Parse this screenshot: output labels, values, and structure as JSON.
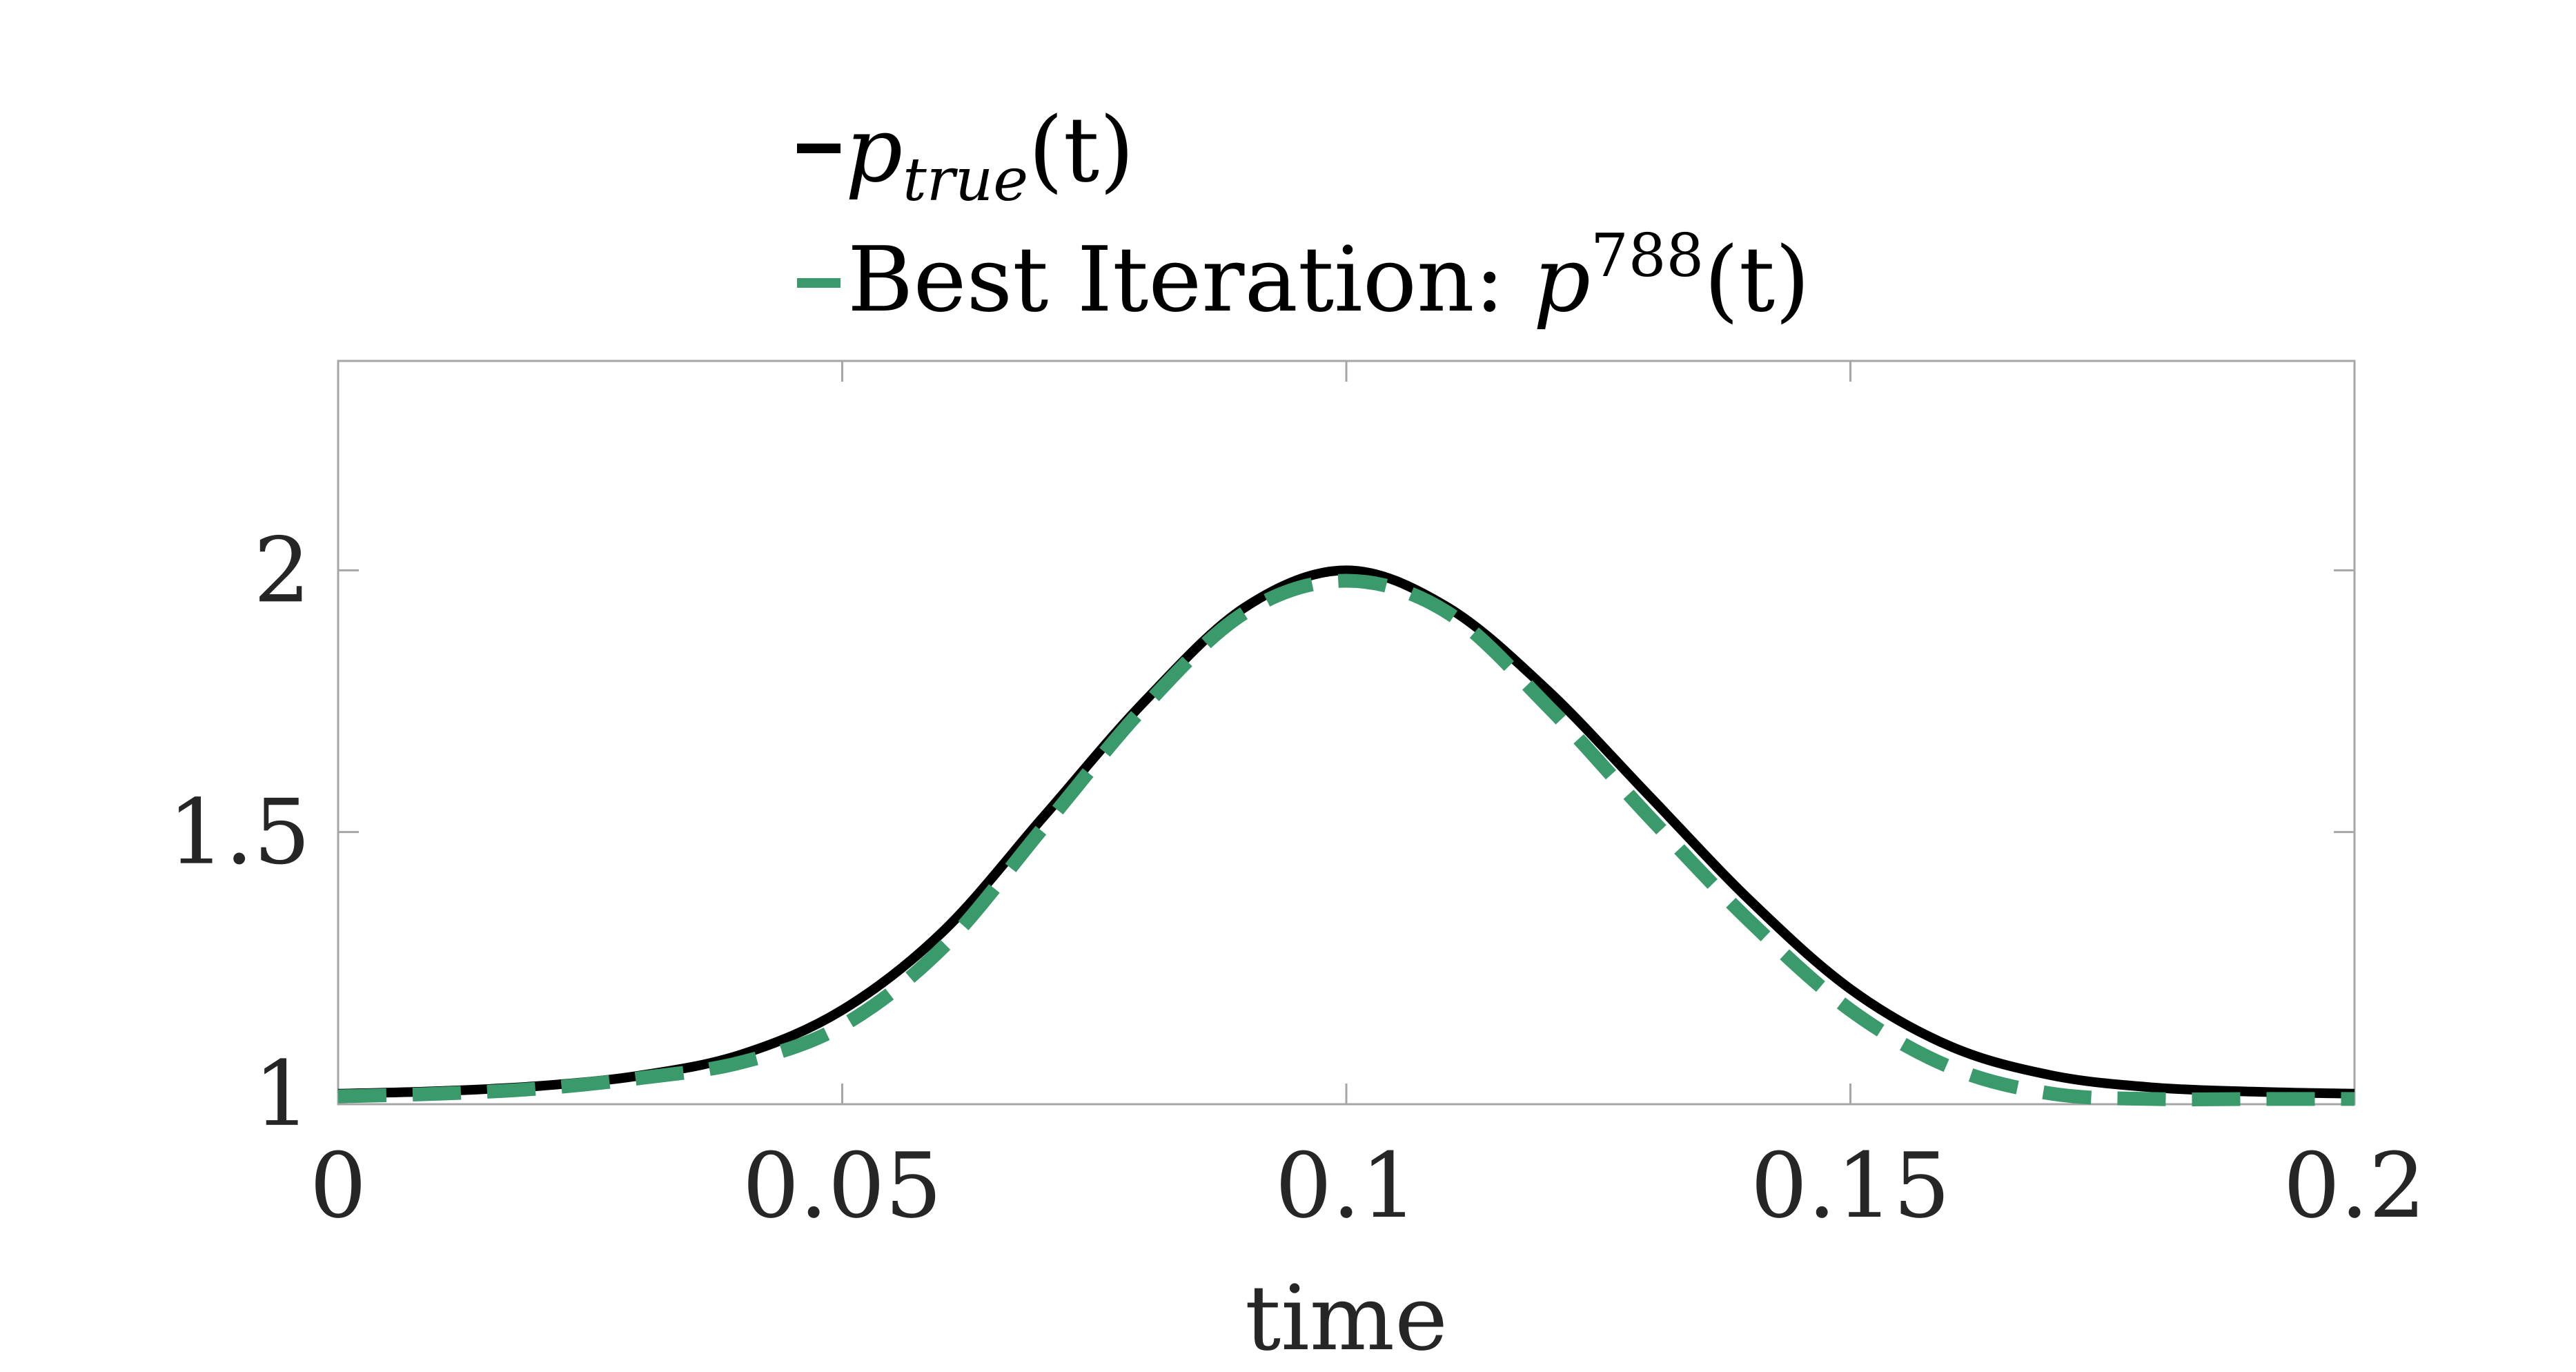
{
  "chart_data": {
    "type": "line",
    "xlabel": "time",
    "ylabel": "",
    "xlim": [
      0,
      0.2
    ],
    "ylim": [
      0.98,
      2.4
    ],
    "xticks": [
      0,
      0.05,
      0.1,
      0.15,
      0.2
    ],
    "xtick_labels": [
      "0",
      "0.05",
      "0.1",
      "0.15",
      "0.2"
    ],
    "yticks": [
      1,
      1.5,
      2
    ],
    "ytick_labels": [
      "1",
      "1.5",
      "2"
    ],
    "grid": false,
    "legend_position": "top-outside",
    "series": [
      {
        "name": "p_true(t)",
        "label_parts": {
          "base": "p",
          "subscript": "true",
          "suffix": "(t)"
        },
        "color": "#000000",
        "style": "solid",
        "x": [
          0,
          0.01,
          0.02,
          0.03,
          0.04,
          0.05,
          0.06,
          0.07,
          0.08,
          0.09,
          0.1,
          0.11,
          0.12,
          0.13,
          0.14,
          0.15,
          0.16,
          0.17,
          0.18,
          0.19,
          0.2
        ],
        "y": [
          1.0,
          1.005,
          1.015,
          1.035,
          1.075,
          1.16,
          1.31,
          1.53,
          1.75,
          1.93,
          2.0,
          1.93,
          1.77,
          1.57,
          1.37,
          1.2,
          1.09,
          1.035,
          1.012,
          1.004,
          1.0
        ]
      },
      {
        "name": "Best Iteration: p^788(t)",
        "label_parts": {
          "prefix": "Best Iteration: ",
          "base": "p",
          "superscript": "788",
          "suffix": "(t)"
        },
        "color": "#3a9a6c",
        "style": "dashed",
        "x": [
          0,
          0.01,
          0.02,
          0.03,
          0.04,
          0.05,
          0.06,
          0.07,
          0.08,
          0.09,
          0.1,
          0.11,
          0.12,
          0.13,
          0.14,
          0.15,
          0.16,
          0.17,
          0.18,
          0.19,
          0.2
        ],
        "y": [
          0.995,
          1.0,
          1.01,
          1.03,
          1.06,
          1.13,
          1.28,
          1.51,
          1.74,
          1.92,
          1.98,
          1.92,
          1.74,
          1.53,
          1.33,
          1.16,
          1.05,
          1.0,
          0.99,
          0.99,
          0.99
        ]
      }
    ]
  }
}
